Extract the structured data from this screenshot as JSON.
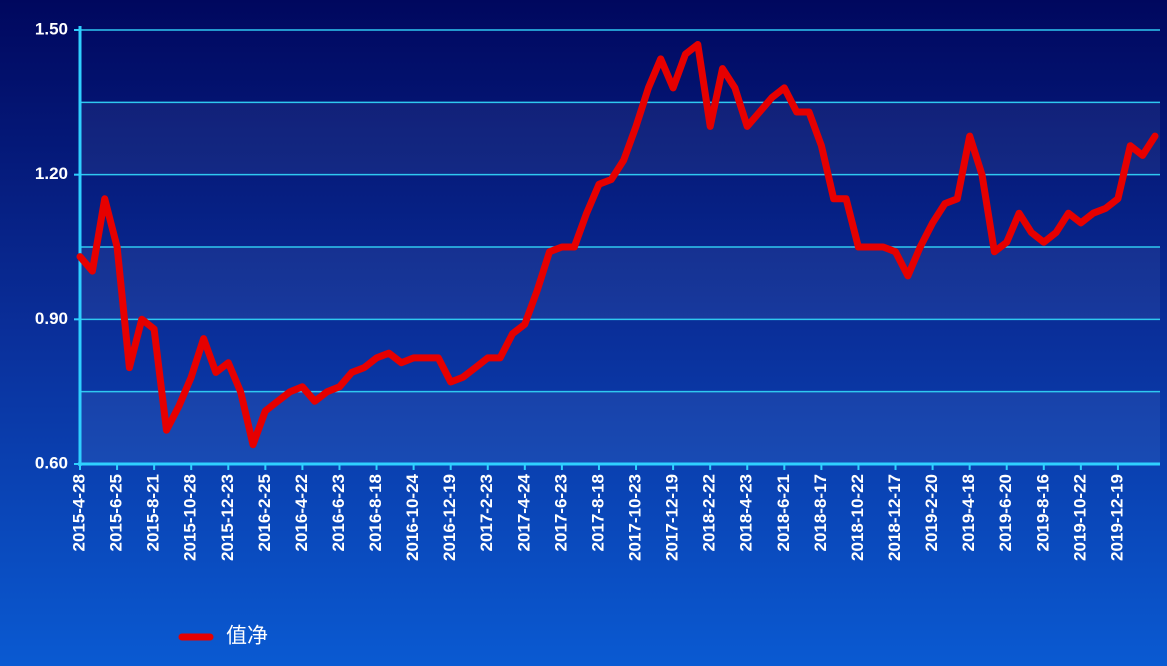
{
  "chart_data": {
    "type": "line",
    "categories": [
      "2015-4-28",
      null,
      null,
      "2015-6-25",
      null,
      null,
      "2015-8-21",
      null,
      null,
      "2015-10-28",
      null,
      null,
      "2015-12-23",
      null,
      null,
      "2016-2-25",
      null,
      null,
      "2016-4-22",
      null,
      null,
      "2016-6-23",
      null,
      null,
      "2016-8-18",
      null,
      null,
      "2016-10-24",
      null,
      null,
      "2016-12-19",
      null,
      null,
      "2017-2-23",
      null,
      null,
      "2017-4-24",
      null,
      null,
      "2017-6-23",
      null,
      null,
      "2017-8-18",
      null,
      null,
      "2017-10-23",
      null,
      null,
      "2017-12-19",
      null,
      null,
      "2018-2-22",
      null,
      null,
      "2018-4-23",
      null,
      null,
      "2018-6-21",
      null,
      null,
      "2018-8-17",
      null,
      null,
      "2018-10-22",
      null,
      null,
      "2018-12-17",
      null,
      null,
      "2019-2-20",
      null,
      null,
      "2019-4-18",
      null,
      null,
      "2019-6-20",
      null,
      null,
      "2019-8-16",
      null,
      null,
      "2019-10-22",
      null,
      null,
      "2019-12-19",
      null,
      null,
      null
    ],
    "series": [
      {
        "name": "值净",
        "color": "#e60000",
        "values": [
          1.03,
          1.0,
          1.15,
          1.05,
          0.8,
          0.9,
          0.88,
          0.67,
          0.72,
          0.78,
          0.86,
          0.79,
          0.81,
          0.75,
          0.64,
          0.71,
          0.73,
          0.75,
          0.76,
          0.73,
          0.75,
          0.76,
          0.79,
          0.8,
          0.82,
          0.83,
          0.81,
          0.82,
          0.82,
          0.82,
          0.77,
          0.78,
          0.8,
          0.82,
          0.82,
          0.87,
          0.89,
          0.96,
          1.04,
          1.05,
          1.05,
          1.12,
          1.18,
          1.19,
          1.23,
          1.3,
          1.38,
          1.44,
          1.38,
          1.45,
          1.47,
          1.3,
          1.42,
          1.38,
          1.3,
          1.33,
          1.36,
          1.38,
          1.33,
          1.33,
          1.26,
          1.15,
          1.15,
          1.05,
          1.05,
          1.05,
          1.04,
          0.99,
          1.05,
          1.1,
          1.14,
          1.15,
          1.28,
          1.2,
          1.04,
          1.06,
          1.12,
          1.08,
          1.06,
          1.08,
          1.12,
          1.1,
          1.12,
          1.13,
          1.15,
          1.26,
          1.24,
          1.28
        ]
      }
    ],
    "ylim": [
      0.6,
      1.5
    ],
    "yticks": [
      {
        "value": 0.6,
        "label": "0.60"
      },
      {
        "value": 0.9,
        "label": "0.90"
      },
      {
        "value": 1.2,
        "label": "1.20"
      },
      {
        "value": 1.5,
        "label": "1.50"
      }
    ],
    "minor_yticks": [
      0.75,
      1.05,
      1.35
    ],
    "grid": true
  }
}
